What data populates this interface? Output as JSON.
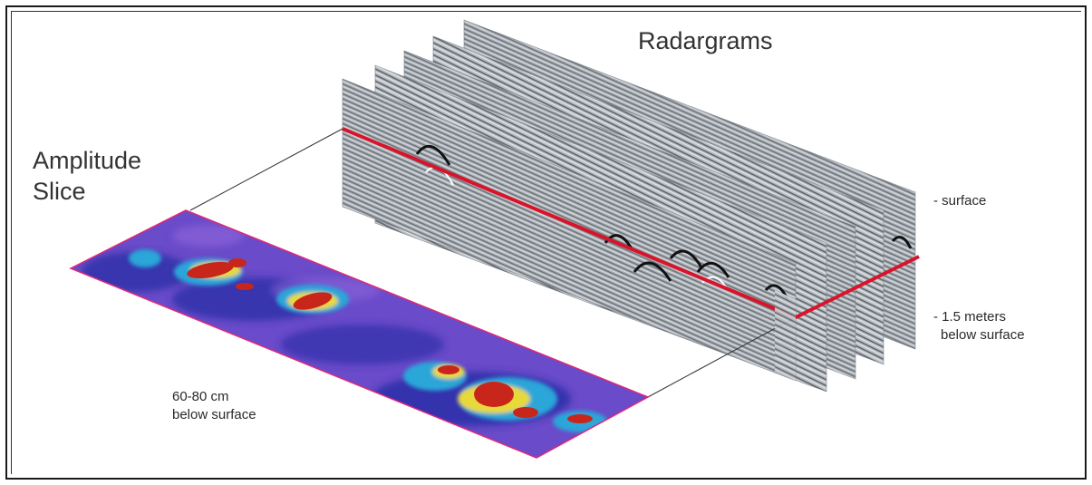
{
  "title": "Radargrams",
  "slice_label": [
    "Amplitude",
    "Slice"
  ],
  "slice_depth": [
    "60-80 cm",
    "below surface"
  ],
  "surface_label": "- surface",
  "deep_label": [
    "- 1.5 meters",
    "below surface"
  ],
  "colors": {
    "frame": "#1a1a1a",
    "slice_line": "#d8142a",
    "slice_outline": "#e0287a",
    "slice_background": "#6a4bc9",
    "slice_low": "#2c2fa8",
    "slice_mid": "#2aa6d8",
    "slice_high": "#c8261a",
    "slice_warm": "#e8d93a",
    "radargram_gray": "#8e959c"
  }
}
